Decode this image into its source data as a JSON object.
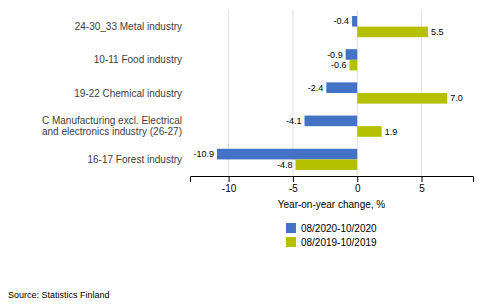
{
  "chart_data": {
    "type": "bar",
    "orientation": "horizontal",
    "categories": [
      "16-17 Forest industry",
      "C Manufacturing excl. Electrical\nand electronics industry (26-27)",
      "19-22 Chemical industry",
      "10-11 Food industry",
      "24-30_33 Metal industry"
    ],
    "series": [
      {
        "name": "08/2020-10/2020",
        "color": "#4472c4",
        "values": [
          -10.9,
          -4.1,
          -2.4,
          -0.9,
          -0.4
        ]
      },
      {
        "name": "08/2019-10/2019",
        "color": "#b5c000",
        "values": [
          -4.8,
          1.9,
          7.0,
          -0.6,
          5.5
        ],
        "value_labels": [
          "-4.8",
          "1.9",
          "7.0",
          "-0.6",
          "5.5"
        ]
      }
    ],
    "xlim": [
      -13,
      9
    ],
    "xticks": [
      -10,
      -5,
      0,
      5
    ],
    "xlabel": "Year-on-year change, %",
    "source": "Source: Statistics Finland",
    "grid": true,
    "legend": "bottom",
    "data_labels": true
  }
}
